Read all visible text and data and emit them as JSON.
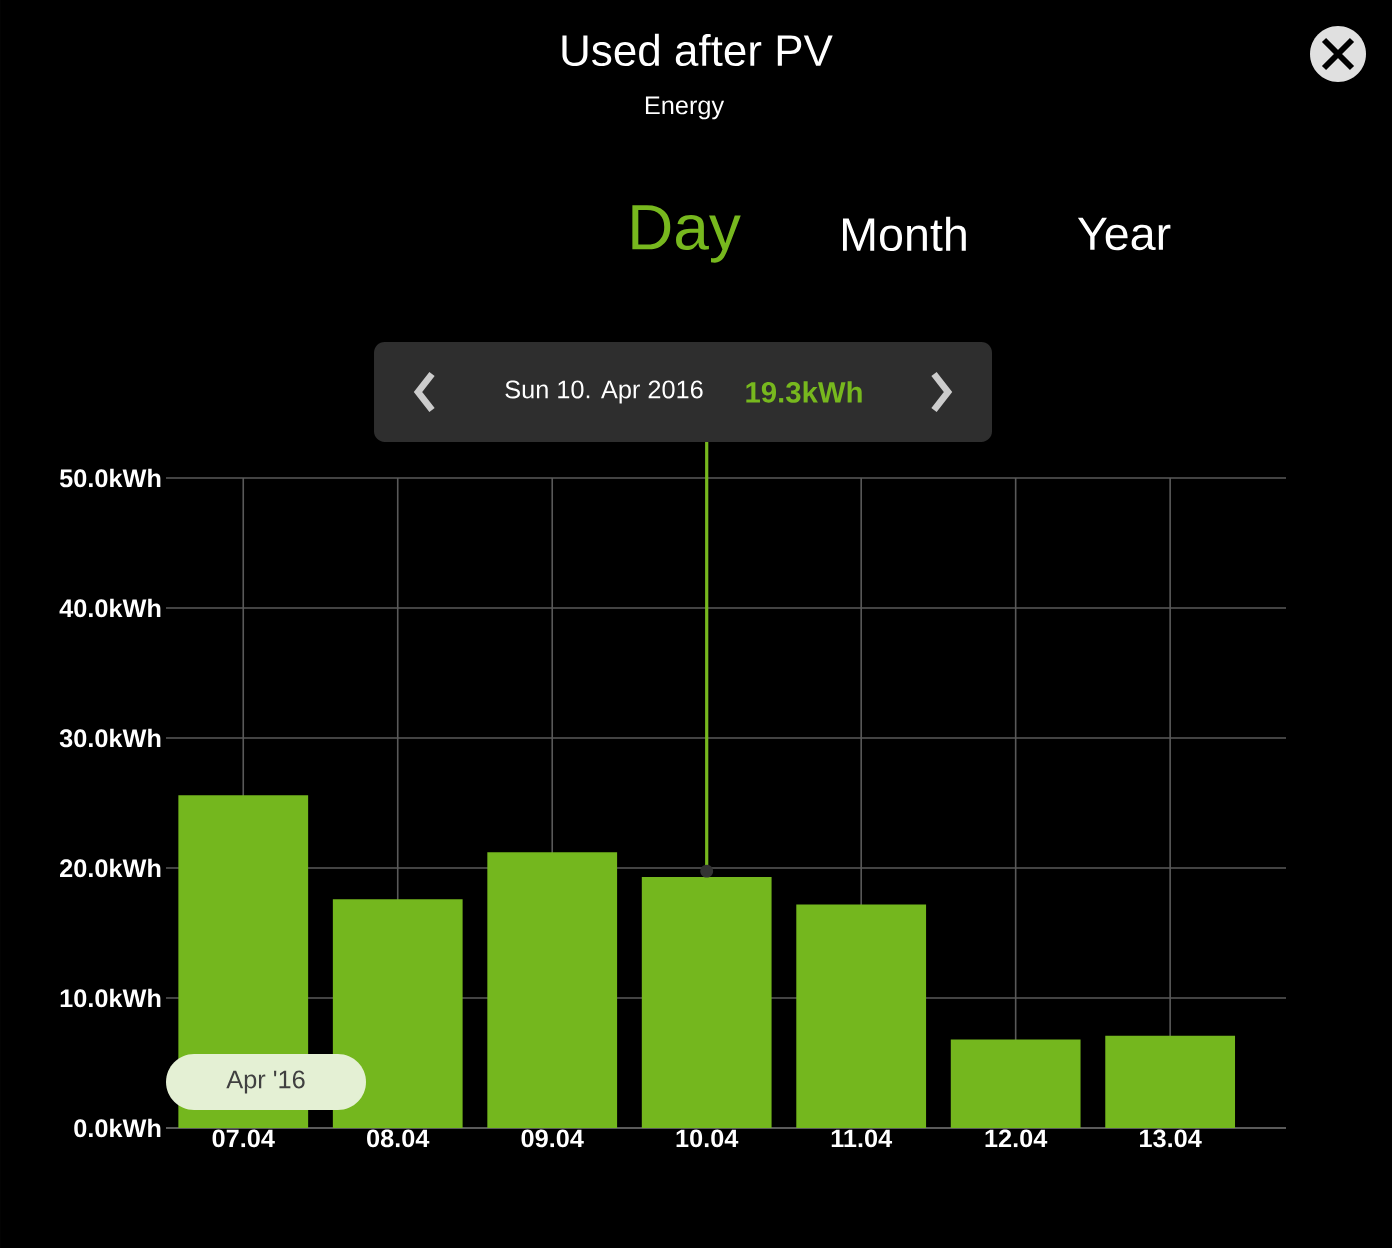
{
  "chart_data": {
    "type": "bar",
    "title": "Used after PV",
    "subtitle": "Energy",
    "categories": [
      "07.04",
      "08.04",
      "09.04",
      "10.04",
      "11.04",
      "12.04",
      "13.04"
    ],
    "values": [
      25.6,
      17.6,
      21.2,
      19.3,
      17.2,
      6.8,
      7.1
    ],
    "color": "#74b71e",
    "ylim": [
      0,
      50
    ],
    "yticks": [
      {
        "value": 0,
        "label": "0.0kWh"
      },
      {
        "value": 10,
        "label": "10.0kWh"
      },
      {
        "value": 20,
        "label": "20.0kWh"
      },
      {
        "value": 30,
        "label": "30.0kWh"
      },
      {
        "value": 40,
        "label": "40.0kWh"
      },
      {
        "value": 50,
        "label": "50.0kWh"
      }
    ],
    "grid": true,
    "ref_lines": [
      {
        "axis": "x",
        "value": "10.04",
        "color": "#77b81e"
      }
    ],
    "annotations": [
      "Day",
      "Month",
      "Year",
      "Apr '16",
      "Sun 10. Apr 2016",
      "19.3kWh"
    ]
  }
}
